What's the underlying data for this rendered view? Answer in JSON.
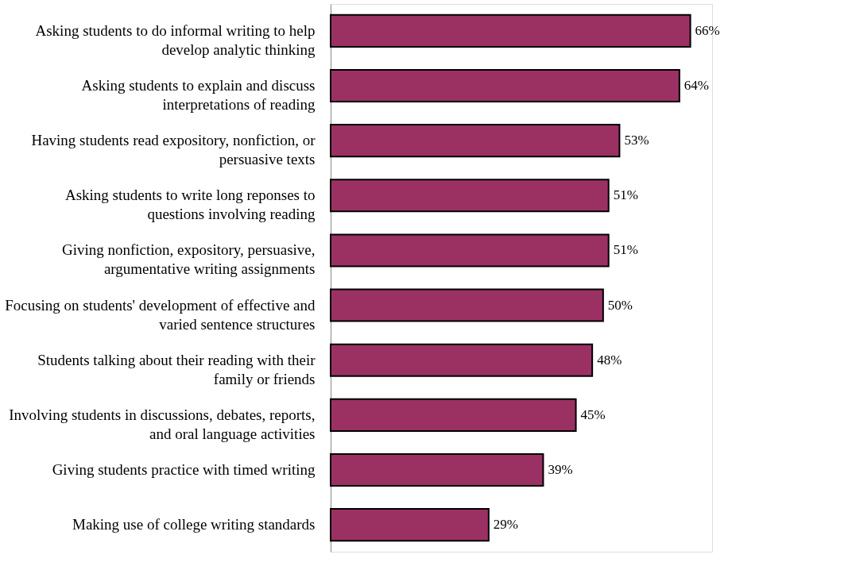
{
  "chart_data": {
    "type": "bar",
    "orientation": "horizontal",
    "categories": [
      "Asking students to do informal writing to help\ndevelop analytic thinking",
      "Asking students to explain and discuss\ninterpretations of reading",
      "Having students read expository, nonfiction, or\npersuasive texts",
      "Asking students to write long reponses to\nquestions involving reading",
      "Giving nonfiction, expository, persuasive,\nargumentative writing assignments",
      "Focusing on students' development of effective and\nvaried sentence structures",
      "Students talking about their reading with their\nfamily or friends",
      "Involving students in discussions, debates, reports,\nand oral language activities",
      "Giving students practice with timed writing",
      "Making use of college writing standards"
    ],
    "values": [
      66,
      64,
      53,
      51,
      51,
      50,
      48,
      45,
      39,
      29
    ],
    "value_labels": [
      "66%",
      "64%",
      "53%",
      "51%",
      "51%",
      "50%",
      "48%",
      "45%",
      "39%",
      "29%"
    ],
    "color": "#9b3162",
    "xlim": [
      0,
      70
    ],
    "tick_labels": "y"
  }
}
